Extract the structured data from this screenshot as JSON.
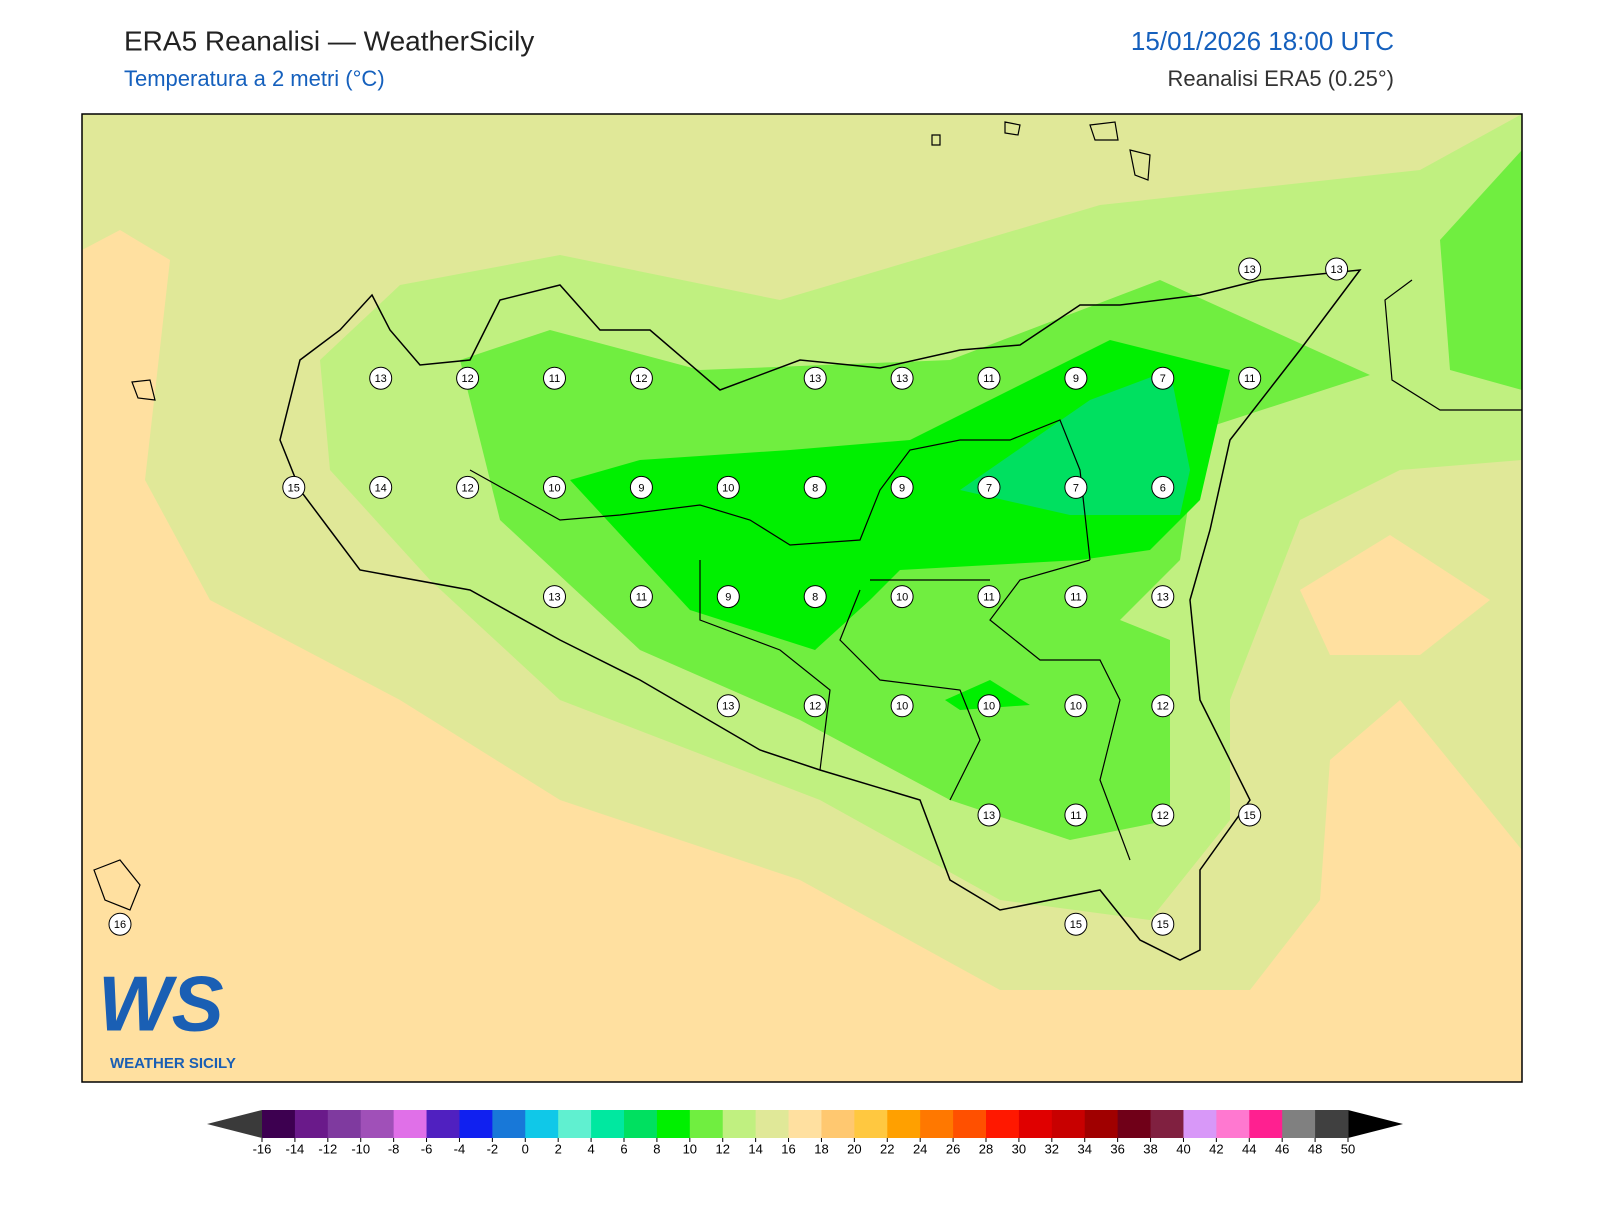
{
  "header": {
    "title": "ERA5 Reanalisi — WeatherSicily",
    "subtitle": "Temperatura a 2 metri (°C)",
    "datetime": "15/01/2026 18:00 UTC",
    "source": "Reanalisi ERA5 (0.25°)"
  },
  "stations": {
    "rows": [
      [
        null,
        null,
        null,
        null,
        null,
        null,
        null,
        null,
        null,
        null,
        null,
        null,
        null,
        13,
        13
      ],
      [
        null,
        null,
        null,
        13,
        12,
        11,
        12,
        null,
        13,
        13,
        11,
        9,
        7,
        11,
        null
      ],
      [
        null,
        null,
        15,
        14,
        12,
        10,
        9,
        10,
        8,
        9,
        7,
        7,
        6,
        null,
        null
      ],
      [
        null,
        null,
        null,
        null,
        null,
        13,
        11,
        9,
        8,
        10,
        11,
        11,
        13,
        null,
        null
      ],
      [
        null,
        null,
        null,
        null,
        null,
        null,
        null,
        13,
        12,
        10,
        10,
        10,
        12,
        null,
        null
      ],
      [
        null,
        null,
        null,
        null,
        null,
        null,
        null,
        null,
        null,
        null,
        13,
        11,
        12,
        15,
        null
      ],
      [
        16,
        null,
        null,
        null,
        null,
        null,
        null,
        null,
        null,
        null,
        null,
        15,
        15,
        null,
        null
      ]
    ]
  },
  "colorbar": {
    "ticks": [
      -16,
      -14,
      -12,
      -10,
      -8,
      -6,
      -4,
      -2,
      0,
      2,
      4,
      6,
      8,
      10,
      12,
      14,
      16,
      18,
      20,
      22,
      24,
      26,
      28,
      30,
      32,
      34,
      36,
      38,
      40,
      42,
      44,
      46,
      48,
      50
    ],
    "colors": [
      "#3d0050",
      "#6a1a8a",
      "#7f3a9f",
      "#a050b8",
      "#e070e8",
      "#5020c0",
      "#1020f0",
      "#1878d8",
      "#10c8e8",
      "#60f0d0",
      "#00e8a0",
      "#00e060",
      "#00f000",
      "#70ee40",
      "#c0f080",
      "#e0e898",
      "#ffe0a0",
      "#ffc870",
      "#ffc840",
      "#ffa000",
      "#ff7800",
      "#ff5000",
      "#ff1800",
      "#e00000",
      "#c80000",
      "#a00000",
      "#700018",
      "#802040",
      "#d898f8",
      "#ff78d0",
      "#ff2090",
      "#808080",
      "#404040"
    ],
    "under": "#3a3a3a",
    "over": "#000000"
  },
  "logo": {
    "mark": "WS",
    "name": "WEATHER SICILY"
  }
}
